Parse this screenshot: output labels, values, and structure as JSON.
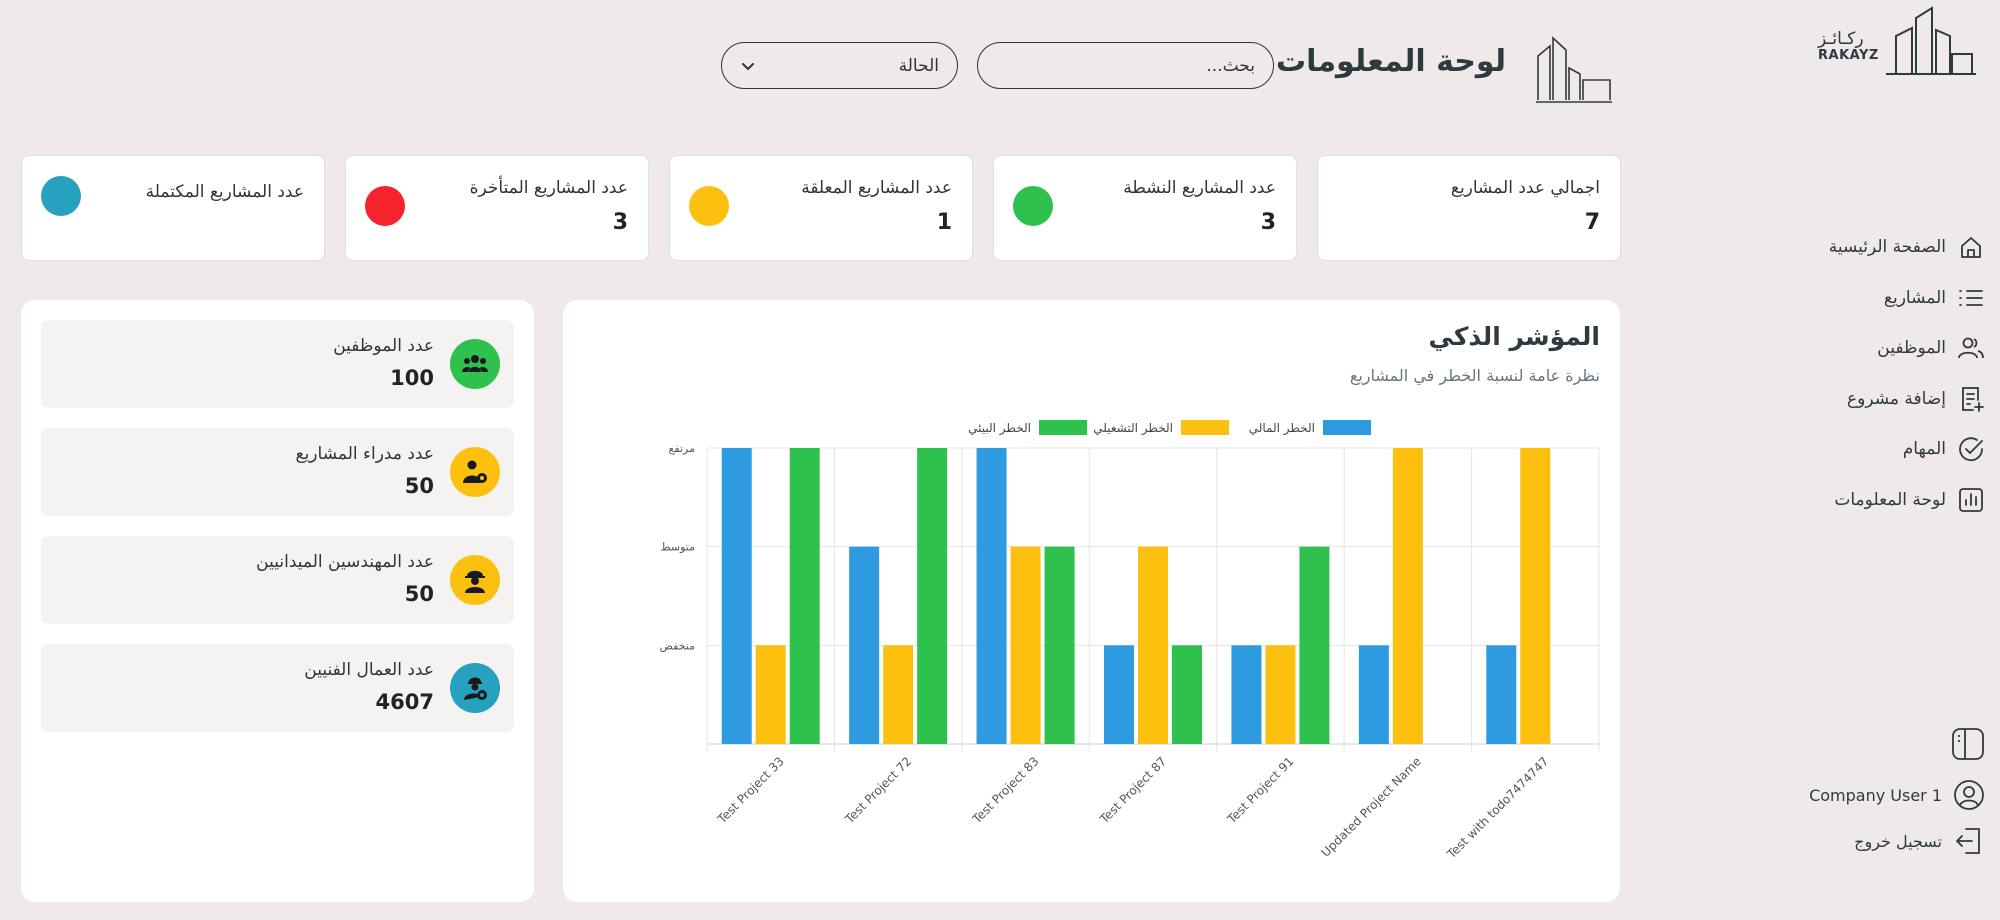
{
  "brand": {
    "name_ar": "ركـائـز",
    "name_en": "RAKAYZ"
  },
  "sidebar": {
    "items": [
      {
        "label": "الصفحة الرئيسية",
        "icon": "home-icon"
      },
      {
        "label": "المشاريع",
        "icon": "list-icon"
      },
      {
        "label": "الموظفين",
        "icon": "users-icon"
      },
      {
        "label": "إضافة مشروع",
        "icon": "add-document-icon"
      },
      {
        "label": "المهام",
        "icon": "check-circle-icon"
      },
      {
        "label": "لوحة المعلومات",
        "icon": "bar-chart-icon"
      }
    ],
    "user_name": "Company User 1",
    "logout_label": "تسجيل خروج"
  },
  "header": {
    "title": "لوحة المعلومات",
    "search_placeholder": "بحث...",
    "status_value": "الحالة"
  },
  "stats": [
    {
      "label": "اجمالي عدد المشاريع",
      "value": "7",
      "color": ""
    },
    {
      "label": "عدد المشاريع النشطة",
      "value": "3",
      "color": "#2fc14d"
    },
    {
      "label": "عدد المشاريع المعلقة",
      "value": "1",
      "color": "#fcc10f"
    },
    {
      "label": "عدد المشاريع المتأخرة",
      "value": "3",
      "color": "#f7232c"
    },
    {
      "label": "عدد المشاريع المكتملة",
      "value": "",
      "color": "#27a1c0"
    }
  ],
  "chart_panel": {
    "title": "المؤشر الذكي",
    "subtitle": "نظرة عامة لنسبة الخطر في المشاريع"
  },
  "chart_data": {
    "type": "bar",
    "categories": [
      "Test Project 33",
      "Test Project 72",
      "Test Project 83",
      "Test Project 87",
      "Test Project 91",
      "Updated Project Name",
      "Test with todo7474747"
    ],
    "y_tick_labels": [
      "منخفض",
      "متوسط",
      "مرتفع"
    ],
    "ylim": [
      0,
      3
    ],
    "grid": true,
    "legend_position": "top-center",
    "series": [
      {
        "name": "الخطر المالي",
        "color": "#2e9ae0",
        "values": [
          3,
          2,
          3,
          1,
          1,
          1,
          1
        ]
      },
      {
        "name": "الخطر التشغيلي",
        "color": "#fdc00e",
        "values": [
          1,
          1,
          2,
          2,
          1,
          3,
          3
        ]
      },
      {
        "name": "الخطر البيئي",
        "color": "#2fc14d",
        "values": [
          3,
          3,
          2,
          1,
          2,
          0,
          0
        ]
      }
    ]
  },
  "workforce": [
    {
      "label": "عدد الموظفين",
      "value": "100",
      "icon": "team-icon",
      "color": "#2fc14d"
    },
    {
      "label": "عدد مدراء المشاريع",
      "value": "50",
      "icon": "manager-gear-icon",
      "color": "#fcc10f"
    },
    {
      "label": "عدد المهندسين الميدانيين",
      "value": "50",
      "icon": "engineer-helmet-icon",
      "color": "#fcc10f"
    },
    {
      "label": "عدد العمال الفنيين",
      "value": "4607",
      "icon": "technician-icon",
      "color": "#27a1c0"
    }
  ]
}
